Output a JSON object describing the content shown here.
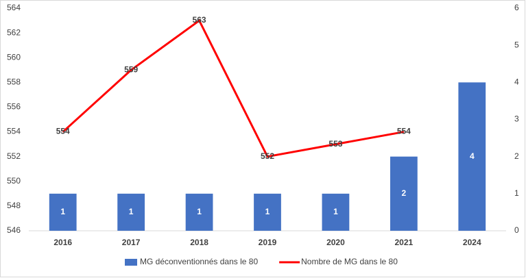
{
  "chart_data": {
    "type": "combo",
    "categories": [
      "2016",
      "2017",
      "2018",
      "2019",
      "2020",
      "2021",
      "2024"
    ],
    "series": [
      {
        "name": "MG déconventionnés dans le 80",
        "type": "bar",
        "color": "#4472c4",
        "axis": "y2",
        "values": [
          1,
          1,
          1,
          1,
          1,
          2,
          4
        ]
      },
      {
        "name": "Nombre de MG dans le 80",
        "type": "line",
        "color": "#ff0000",
        "values": [
          554,
          559,
          563,
          552,
          553,
          554,
          null
        ]
      }
    ],
    "ylim": [
      546,
      564
    ],
    "yticks": [
      546,
      548,
      550,
      552,
      554,
      556,
      558,
      560,
      562,
      564
    ],
    "y2lim": [
      0,
      6
    ],
    "y2ticks": [
      0,
      1,
      2,
      3,
      4,
      5,
      6
    ],
    "grid": false,
    "legend": "bottom"
  }
}
